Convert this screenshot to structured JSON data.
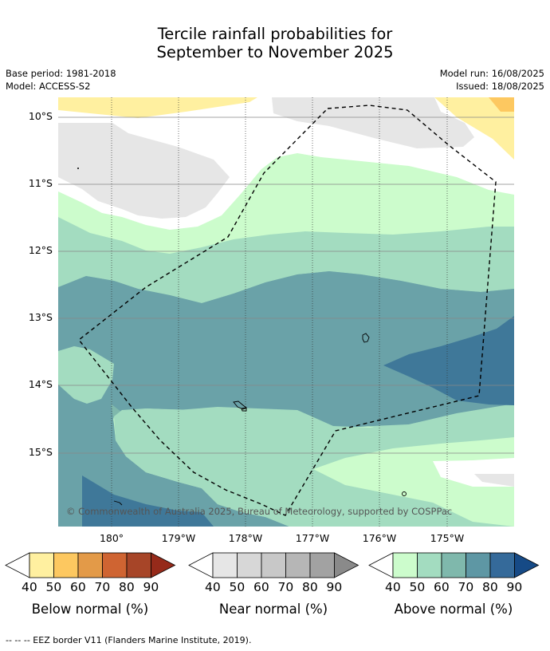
{
  "title_line1": "Tercile rainfall probabilities for",
  "title_line2": "September to November 2025",
  "base_period": "Base period: 1981-2018",
  "model": "Model: ACCESS-S2",
  "model_run": "Model run: 16/08/2025",
  "issued": "Issued: 18/08/2025",
  "lat_labels": [
    "10°S",
    "11°S",
    "12°S",
    "13°S",
    "14°S",
    "15°S"
  ],
  "lon_labels": [
    "180°",
    "179°W",
    "178°W",
    "177°W",
    "176°W",
    "175°W"
  ],
  "copyright": "© Commonwealth of Australia 2025, Bureau of Meteorology, supported by COSPPac",
  "legend": {
    "below": {
      "title": "Below normal (%)",
      "ticks": [
        "40",
        "50",
        "60",
        "70",
        "80",
        "90"
      ],
      "colors": [
        "#fff0a0",
        "#fdc860",
        "#e39a48",
        "#cf6432",
        "#a74528",
        "#962a1a"
      ]
    },
    "near": {
      "title": "Near normal (%)",
      "ticks": [
        "40",
        "50",
        "60",
        "70",
        "80",
        "90"
      ],
      "colors": [
        "#e6e6e6",
        "#d7d7d7",
        "#c8c8c8",
        "#b6b6b6",
        "#a2a2a2",
        "#8a8a8a"
      ]
    },
    "above": {
      "title": "Above normal (%)",
      "ticks": [
        "40",
        "50",
        "60",
        "70",
        "80",
        "90"
      ],
      "colors": [
        "#ccfccc",
        "#a3dcc0",
        "#7fb8ac",
        "#5e97a4",
        "#356a9a",
        "#164a86"
      ]
    }
  },
  "footer": "-- -- -- EEZ border V11 (Flanders Marine Institute, 2019)."
}
